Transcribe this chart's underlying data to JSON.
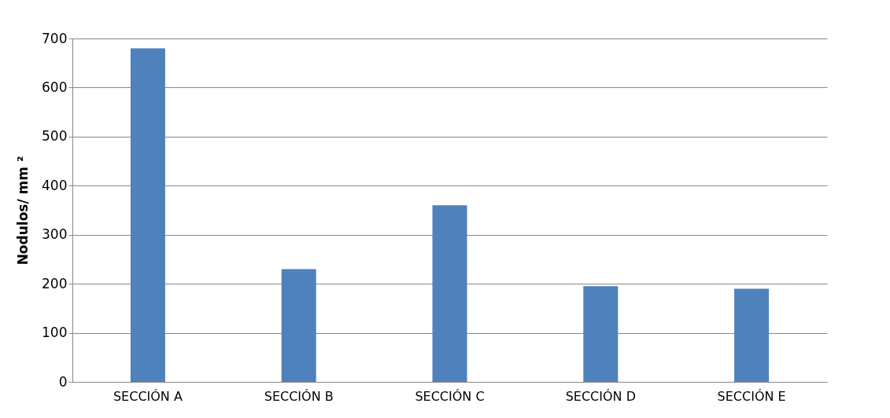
{
  "chart_data": {
    "type": "bar",
    "ylabel": "Nodulos/ mm ²",
    "categories": [
      "SECCIÓN A",
      "SECCIÓN B",
      "SECCIÓN C",
      "SECCIÓN D",
      "SECCIÓN E"
    ],
    "values": [
      680,
      230,
      360,
      195,
      190
    ],
    "color": "#4f81bd",
    "ylim": [
      0,
      700
    ],
    "yticks": [
      0,
      100,
      200,
      300,
      400,
      500,
      600,
      700
    ],
    "grid": "y"
  }
}
